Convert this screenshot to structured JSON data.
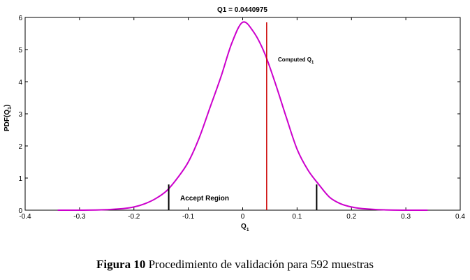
{
  "chart_data": {
    "type": "line",
    "title": "Q1 = 0.0440975",
    "xlabel": "Q",
    "xlabel_sub": "1",
    "ylabel": "PDF(Q",
    "ylabel_sub": "1",
    "ylabel_close": ")",
    "xlim": [
      -0.4,
      0.4
    ],
    "ylim": [
      0,
      6
    ],
    "x_ticks": [
      -0.4,
      -0.3,
      -0.2,
      -0.1,
      0,
      0.1,
      0.2,
      0.3,
      0.4
    ],
    "x_tick_labels": [
      "-0.4",
      "-0.3",
      "-0.2",
      "-0.1",
      "0",
      "0.1",
      "0.2",
      "0.3",
      "0.4"
    ],
    "y_ticks": [
      0,
      1,
      2,
      3,
      4,
      5,
      6
    ],
    "y_tick_labels": [
      "0",
      "1",
      "2",
      "3",
      "4",
      "5",
      "6"
    ],
    "grid": false,
    "series": [
      {
        "color": "#cc00cc",
        "x": [
          -0.34,
          -0.3,
          -0.26,
          -0.22,
          -0.2,
          -0.18,
          -0.16,
          -0.14,
          -0.12,
          -0.1,
          -0.08,
          -0.06,
          -0.04,
          -0.02,
          0,
          0.02,
          0.04,
          0.06,
          0.08,
          0.1,
          0.12,
          0.14,
          0.16,
          0.18,
          0.2,
          0.22,
          0.26,
          0.3,
          0.34
        ],
        "y": [
          0.0,
          0.0,
          0.01,
          0.05,
          0.1,
          0.2,
          0.36,
          0.6,
          1.0,
          1.5,
          2.25,
          3.2,
          4.15,
          5.2,
          5.85,
          5.55,
          4.9,
          3.95,
          2.9,
          1.9,
          1.25,
          0.8,
          0.4,
          0.2,
          0.1,
          0.05,
          0.01,
          0.0,
          0.0
        ]
      }
    ],
    "computed_line": {
      "x": 0.0440975,
      "color": "#cc0000",
      "label": "Computed Q",
      "label_sub": "1"
    },
    "accept_bounds": [
      {
        "x": -0.136,
        "y": 0.8
      },
      {
        "x": 0.136,
        "y": 0.8
      }
    ],
    "accept_label": "Accept Region"
  },
  "caption": {
    "bold": "Figura 10",
    "text": " Procedimiento de validación para 592 muestras"
  }
}
